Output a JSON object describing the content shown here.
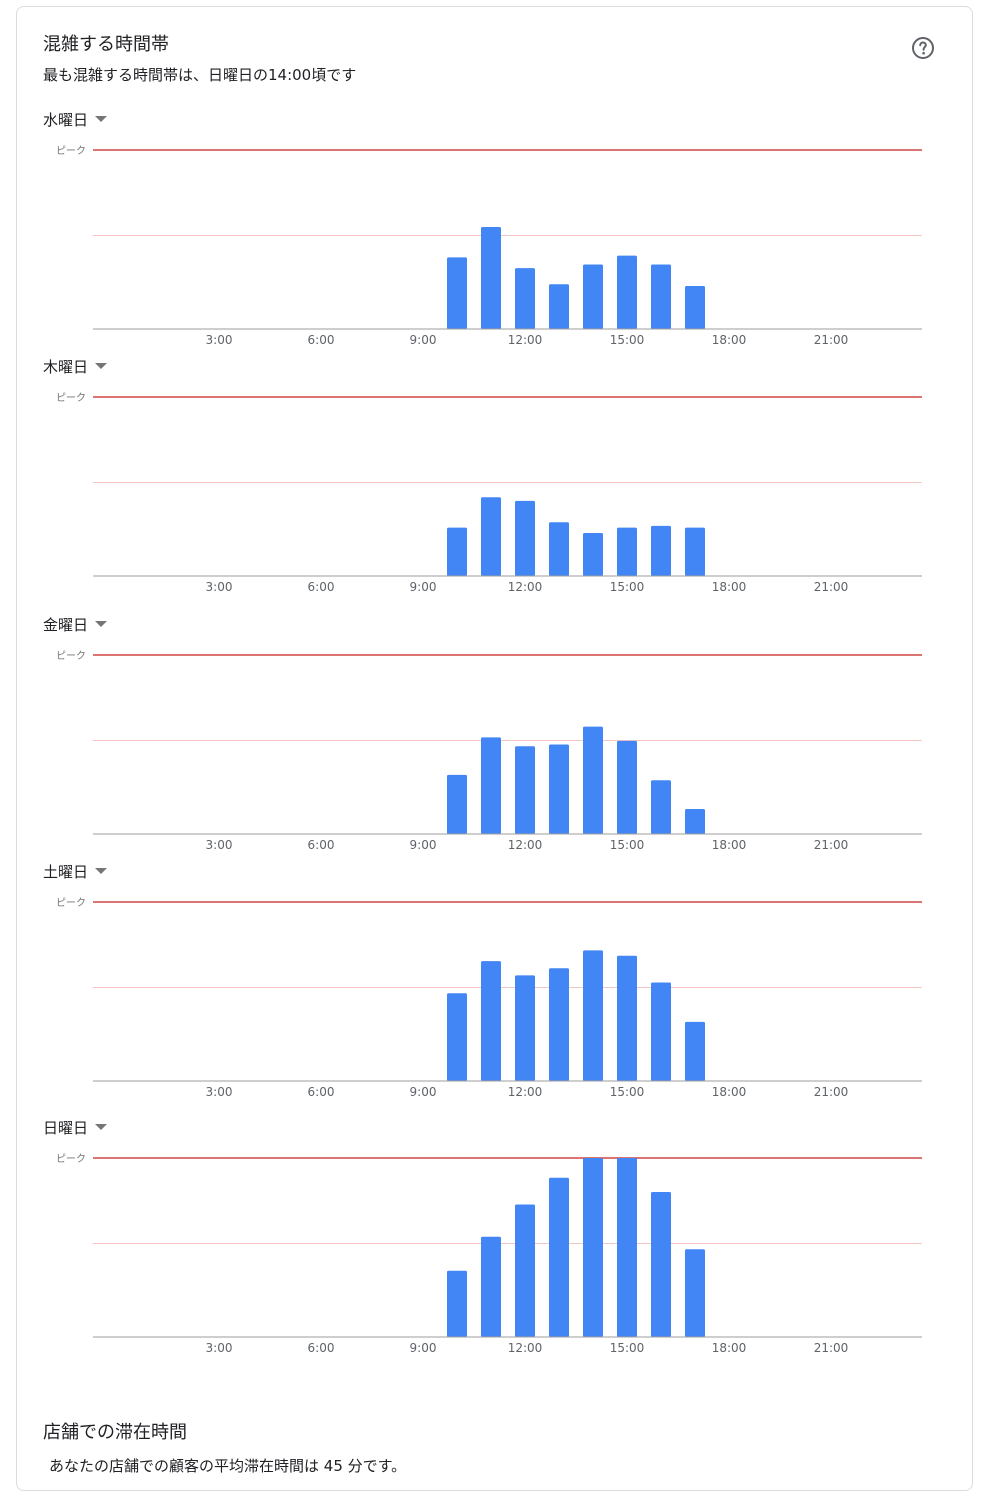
{
  "header": {
    "title": "混雑する時間帯",
    "subtitle": "最も混雑する時間帯は、日曜日の14:00頃です",
    "help_icon": "help-circle-icon"
  },
  "dwell": {
    "title": "店舗での滞在時間",
    "text": "あなたの店舗での顧客の平均滞在時間は 45 分です。"
  },
  "colors": {
    "bar": "#4285f4",
    "peak_line": "#c5221f",
    "mid_line": "#f4c7c3",
    "axis": "#9e9e9e"
  },
  "chart_data": [
    {
      "type": "bar",
      "day": "水曜日",
      "peak_label": "ピーク",
      "x_range": [
        0,
        24
      ],
      "x_ticks": [
        "3:00",
        "6:00",
        "9:00",
        "12:00",
        "15:00",
        "18:00",
        "21:00"
      ],
      "x": [
        10,
        11,
        12,
        13,
        14,
        15,
        16,
        17
      ],
      "values": [
        40,
        57,
        34,
        25,
        36,
        41,
        36,
        24
      ],
      "ylim": [
        0,
        100
      ]
    },
    {
      "type": "bar",
      "day": "木曜日",
      "peak_label": "ピーク",
      "x_range": [
        0,
        24
      ],
      "x_ticks": [
        "3:00",
        "6:00",
        "9:00",
        "12:00",
        "15:00",
        "18:00",
        "21:00"
      ],
      "x": [
        10,
        11,
        12,
        13,
        14,
        15,
        16,
        17
      ],
      "values": [
        27,
        44,
        42,
        30,
        24,
        27,
        28,
        27
      ],
      "ylim": [
        0,
        100
      ]
    },
    {
      "type": "bar",
      "day": "金曜日",
      "peak_label": "ピーク",
      "x_range": [
        0,
        24
      ],
      "x_ticks": [
        "3:00",
        "6:00",
        "9:00",
        "12:00",
        "15:00",
        "18:00",
        "21:00"
      ],
      "x": [
        10,
        11,
        12,
        13,
        14,
        15,
        16,
        17
      ],
      "values": [
        33,
        54,
        49,
        50,
        60,
        52,
        30,
        14
      ],
      "ylim": [
        0,
        100
      ]
    },
    {
      "type": "bar",
      "day": "土曜日",
      "peak_label": "ピーク",
      "x_range": [
        0,
        24
      ],
      "x_ticks": [
        "3:00",
        "6:00",
        "9:00",
        "12:00",
        "15:00",
        "18:00",
        "21:00"
      ],
      "x": [
        10,
        11,
        12,
        13,
        14,
        15,
        16,
        17
      ],
      "values": [
        49,
        67,
        59,
        63,
        73,
        70,
        55,
        33
      ],
      "ylim": [
        0,
        100
      ]
    },
    {
      "type": "bar",
      "day": "日曜日",
      "peak_label": "ピーク",
      "x_range": [
        0,
        24
      ],
      "x_ticks": [
        "3:00",
        "6:00",
        "9:00",
        "12:00",
        "15:00",
        "18:00",
        "21:00"
      ],
      "x": [
        10,
        11,
        12,
        13,
        14,
        15,
        16,
        17
      ],
      "values": [
        37,
        56,
        74,
        89,
        100,
        100,
        81,
        49
      ],
      "ylim": [
        0,
        100
      ]
    }
  ]
}
